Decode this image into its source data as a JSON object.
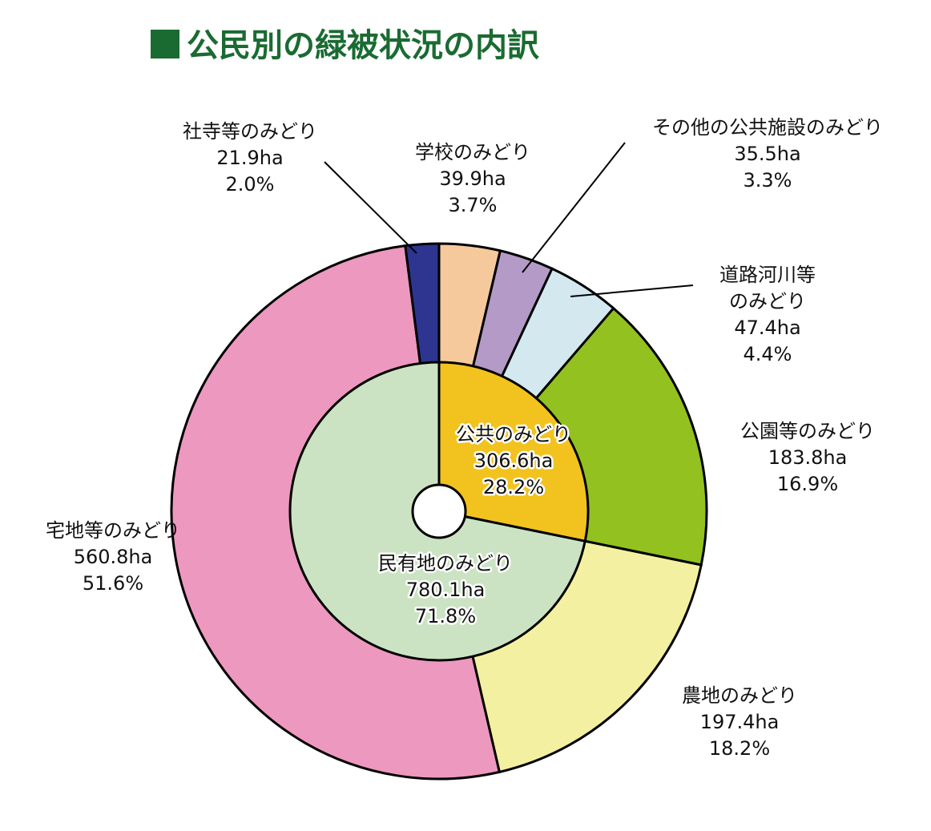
{
  "title": "公民別の緑被状況の内訳",
  "colors": {
    "title": "#1a6b32"
  },
  "chart_data": {
    "type": "pie",
    "title": "公民別の緑被状況の内訳",
    "inner_ring": [
      {
        "name": "公共のみどり",
        "value": 306.6,
        "value_label": "306.6ha",
        "percent": 28.2,
        "percent_label": "28.2%",
        "color": "#f2c31e"
      },
      {
        "name": "民有地のみどり",
        "value": 780.1,
        "value_label": "780.1ha",
        "percent": 71.8,
        "percent_label": "71.8%",
        "color": "#cbe3c3"
      }
    ],
    "outer_ring": [
      {
        "name": "学校のみどり",
        "value": 39.9,
        "value_label": "39.9ha",
        "percent": 3.7,
        "percent_label": "3.7%",
        "color": "#f6c99c"
      },
      {
        "name": "その他の公共施設のみどり",
        "value": 35.5,
        "value_label": "35.5ha",
        "percent": 3.3,
        "percent_label": "3.3%",
        "color": "#b49ac6"
      },
      {
        "name_lines": [
          "道路河川等",
          "のみどり"
        ],
        "name": "道路河川等のみどり",
        "value": 47.4,
        "value_label": "47.4ha",
        "percent": 4.4,
        "percent_label": "4.4%",
        "color": "#d3e9ef"
      },
      {
        "name": "公園等のみどり",
        "value": 183.8,
        "value_label": "183.8ha",
        "percent": 16.9,
        "percent_label": "16.9%",
        "color": "#93c11f"
      },
      {
        "name": "農地のみどり",
        "value": 197.4,
        "value_label": "197.4ha",
        "percent": 18.2,
        "percent_label": "18.2%",
        "color": "#f4f0a1"
      },
      {
        "name": "宅地等のみどり",
        "value": 560.8,
        "value_label": "560.8ha",
        "percent": 51.6,
        "percent_label": "51.6%",
        "color": "#ed98be"
      },
      {
        "name": "社寺等のみどり",
        "value": 21.9,
        "value_label": "21.9ha",
        "percent": 2.0,
        "percent_label": "2.0%",
        "color": "#2e3590"
      }
    ]
  }
}
